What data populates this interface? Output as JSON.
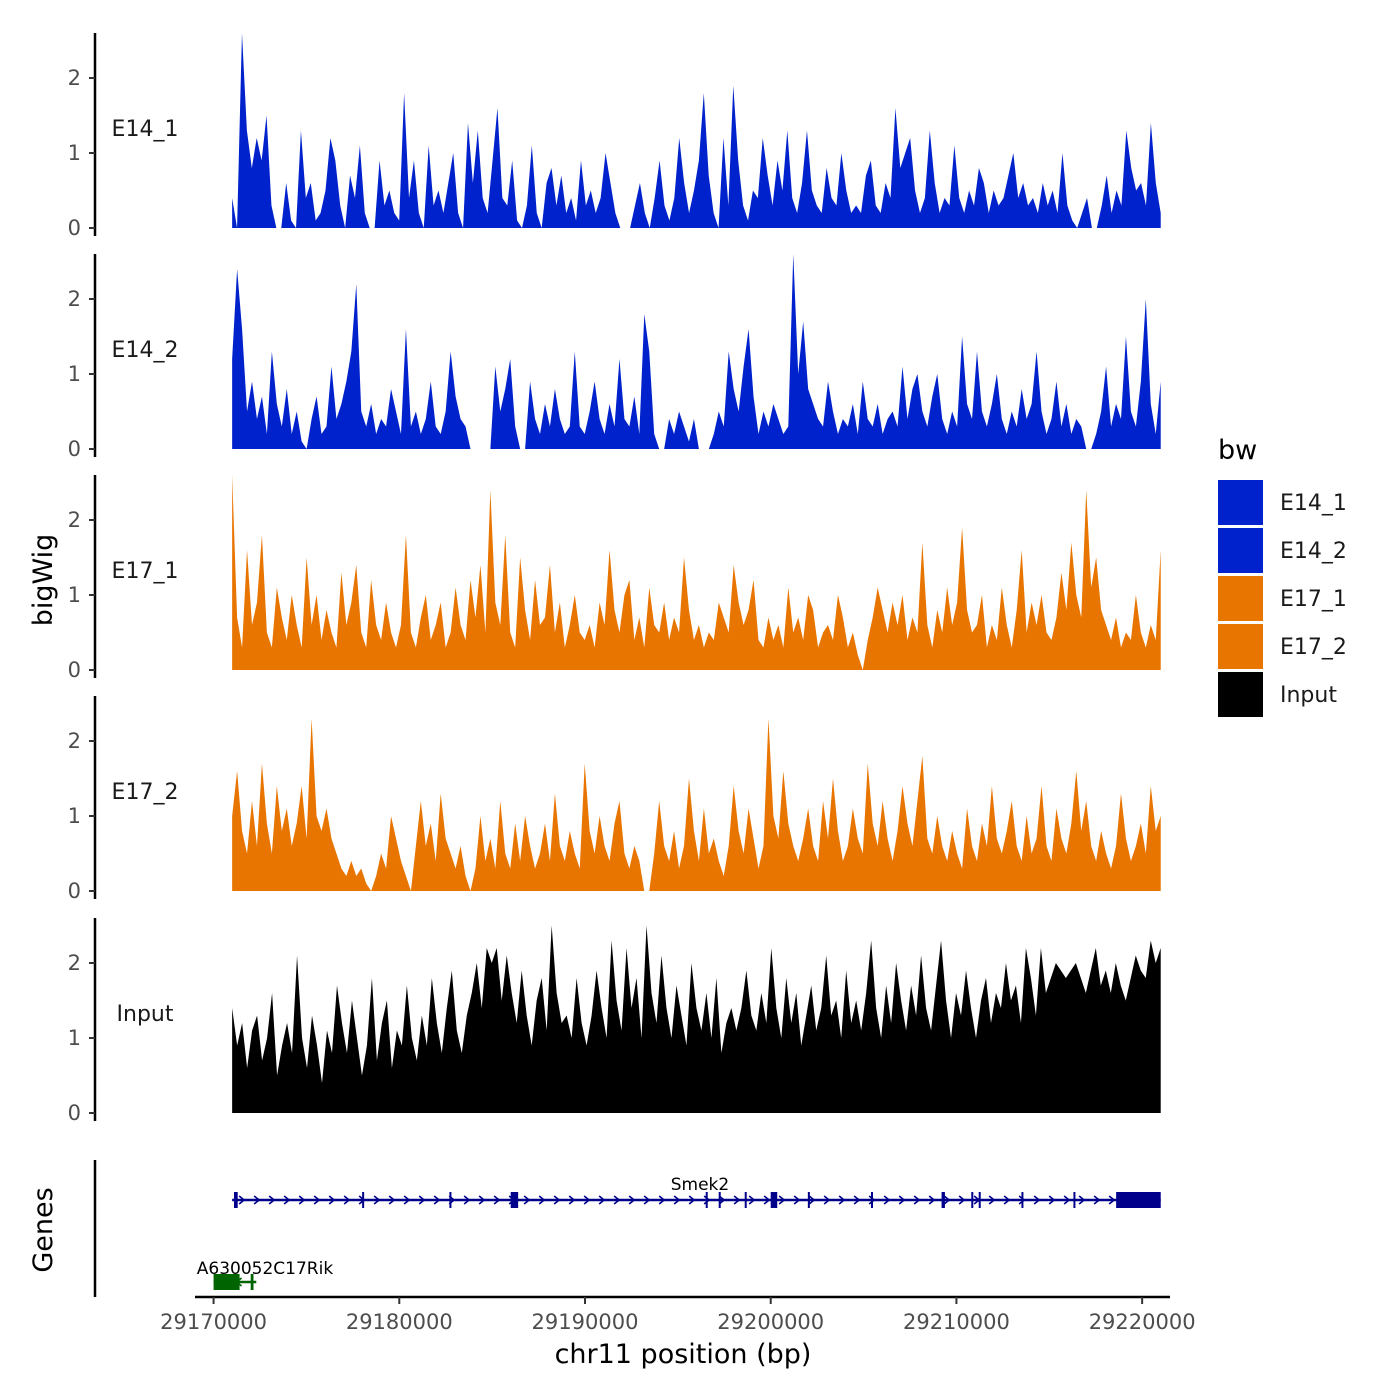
{
  "chart_data": {
    "type": "area",
    "title": "",
    "xlabel": "chr11 position (bp)",
    "ylabel_tracks": "bigWig",
    "ylabel_genes": "Genes",
    "xlim": [
      29169000,
      29221500
    ],
    "data_x_range": [
      29171000,
      29221000
    ],
    "ylim": [
      0,
      2.6
    ],
    "y_ticks": [
      "0",
      "1",
      "2"
    ],
    "x_ticks": [
      "29170000",
      "29180000",
      "29190000",
      "29200000",
      "29210000",
      "29220000"
    ],
    "legend": {
      "title": "bw",
      "position": "right",
      "entries": [
        {
          "label": "E14_1",
          "color": "#0022CC"
        },
        {
          "label": "E14_2",
          "color": "#0022CC"
        },
        {
          "label": "E17_1",
          "color": "#E87500"
        },
        {
          "label": "E17_2",
          "color": "#E87500"
        },
        {
          "label": "Input",
          "color": "#000000"
        }
      ]
    },
    "series": [
      {
        "name": "E14_1",
        "color": "#0022CC",
        "values": [
          0.4,
          0,
          2.6,
          1.3,
          0.8,
          1.2,
          0.9,
          1.5,
          0.3,
          0,
          0,
          0.6,
          0.1,
          0,
          1.3,
          0.4,
          0.6,
          0.1,
          0.2,
          0.5,
          1.2,
          0.9,
          0.3,
          0,
          0.7,
          0.4,
          1.1,
          0.2,
          0,
          0,
          0.9,
          0.3,
          0.5,
          0.2,
          0.1,
          1.8,
          0.4,
          0.9,
          0.2,
          0,
          1.1,
          0.3,
          0.5,
          0.2,
          0.6,
          1.0,
          0.2,
          0,
          1.4,
          0.6,
          1.3,
          0.4,
          0.2,
          0.9,
          1.6,
          0.4,
          0.3,
          0.9,
          0.1,
          0,
          0.3,
          1.1,
          0.2,
          0,
          0.6,
          0.8,
          0.3,
          0.7,
          0.2,
          0.4,
          0.1,
          0.9,
          0.3,
          0.5,
          0.2,
          0.4,
          1.0,
          0.6,
          0.2,
          0,
          0,
          0,
          0.3,
          0.6,
          0.2,
          0,
          0.4,
          0.9,
          0.3,
          0.1,
          0.4,
          1.2,
          0.6,
          0.2,
          0.5,
          0.9,
          1.8,
          0.7,
          0.2,
          0,
          1.2,
          0.3,
          1.9,
          0.9,
          0.3,
          0.1,
          0.5,
          0.4,
          1.2,
          0.7,
          0.3,
          0.9,
          0.5,
          1.3,
          0.4,
          0.2,
          0.6,
          1.3,
          0.5,
          0.3,
          0.2,
          0.8,
          0.4,
          0.3,
          1.0,
          0.5,
          0.2,
          0.3,
          0.2,
          0.7,
          0.9,
          0.3,
          0.2,
          0.6,
          0.4,
          1.6,
          0.8,
          1.0,
          1.2,
          0.5,
          0.2,
          0.4,
          1.3,
          0.6,
          0.2,
          0.4,
          0.3,
          1.1,
          0.4,
          0.2,
          0.5,
          0.3,
          0.8,
          0.6,
          0.2,
          0.5,
          0.3,
          0.4,
          0.7,
          1.0,
          0.4,
          0.6,
          0.3,
          0.4,
          0.2,
          0.6,
          0.3,
          0.5,
          0.2,
          1.0,
          0.3,
          0.1,
          0,
          0.2,
          0.4,
          0,
          0,
          0.3,
          0.7,
          0.2,
          0.5,
          0.3,
          1.3,
          0.8,
          0.5,
          0.6,
          0.3,
          1.4,
          0.6,
          0.2
        ]
      },
      {
        "name": "E14_2",
        "color": "#0022CC",
        "values": [
          1.2,
          2.4,
          1.6,
          0.5,
          0.9,
          0.4,
          0.7,
          0.2,
          1.3,
          0.6,
          0.3,
          0.8,
          0.2,
          0.5,
          0.1,
          0,
          0.4,
          0.7,
          0.2,
          0.3,
          1.1,
          0.4,
          0.6,
          0.9,
          1.3,
          2.2,
          0.5,
          0.3,
          0.6,
          0.2,
          0.4,
          0.3,
          0.8,
          0.5,
          0.2,
          1.6,
          0.3,
          0.5,
          0.2,
          0.4,
          0.9,
          0.3,
          0.2,
          0.5,
          1.3,
          0.7,
          0.4,
          0.3,
          0,
          0,
          0,
          0,
          0,
          1.1,
          0.5,
          0.8,
          1.2,
          0.3,
          0,
          0,
          0.9,
          0.4,
          0.2,
          0.6,
          0.3,
          0.8,
          0.4,
          0.2,
          0.3,
          1.3,
          0.3,
          0.2,
          0.5,
          0.9,
          0.4,
          0.2,
          0.6,
          0.3,
          1.2,
          0.4,
          0.3,
          0.7,
          0.2,
          1.8,
          1.3,
          0.2,
          0,
          0,
          0.4,
          0.2,
          0.5,
          0.3,
          0.1,
          0.4,
          0,
          0,
          0,
          0.2,
          0.5,
          0.3,
          1.3,
          0.8,
          0.5,
          1.1,
          1.6,
          0.7,
          0.2,
          0.5,
          0.3,
          0.6,
          0.4,
          0.2,
          0.3,
          2.6,
          1.0,
          1.7,
          0.8,
          0.6,
          0.4,
          0.3,
          0.9,
          0.5,
          0.2,
          0.4,
          0.3,
          0.6,
          0.2,
          0.9,
          0.4,
          0.3,
          0.6,
          0.2,
          0.4,
          0.5,
          0.3,
          1.1,
          0.4,
          0.8,
          1.0,
          0.5,
          0.3,
          0.7,
          1.0,
          0.4,
          0.2,
          0.5,
          0.3,
          1.5,
          0.6,
          0.4,
          1.3,
          0.5,
          0.3,
          0.6,
          1.0,
          0.4,
          0.2,
          0.5,
          0.3,
          0.8,
          0.4,
          0.6,
          1.3,
          0.5,
          0.2,
          0.4,
          0.9,
          0.3,
          0.6,
          0.2,
          0.4,
          0.3,
          0,
          0,
          0.2,
          0.5,
          1.1,
          0.3,
          0.6,
          0.4,
          1.5,
          0.5,
          0.3,
          0.9,
          2.0,
          0.6,
          0.2,
          0.9
        ]
      },
      {
        "name": "E17_1",
        "color": "#E87500",
        "values": [
          2.6,
          0.7,
          0.3,
          1.6,
          0.6,
          0.9,
          1.8,
          0.5,
          0.3,
          1.1,
          0.7,
          0.4,
          1.0,
          0.6,
          0.3,
          1.5,
          0.6,
          1.0,
          0.4,
          0.8,
          0.5,
          0.3,
          1.3,
          0.6,
          0.9,
          1.4,
          0.5,
          0.3,
          1.2,
          0.6,
          0.4,
          0.9,
          0.5,
          0.3,
          0.6,
          1.8,
          0.5,
          0.3,
          0.7,
          1.0,
          0.4,
          0.6,
          0.9,
          0.3,
          0.5,
          1.1,
          0.6,
          0.4,
          1.2,
          0.7,
          1.4,
          0.5,
          2.4,
          0.9,
          0.6,
          1.8,
          0.5,
          0.3,
          1.5,
          0.8,
          0.4,
          1.2,
          0.6,
          0.7,
          1.4,
          0.5,
          0.9,
          0.3,
          0.6,
          1.0,
          0.5,
          0.4,
          0.6,
          0.3,
          0.9,
          0.6,
          1.6,
          0.8,
          0.5,
          1.0,
          1.2,
          0.4,
          0.7,
          0.3,
          1.1,
          0.6,
          0.5,
          0.9,
          0.4,
          0.7,
          0.5,
          1.5,
          0.8,
          0.4,
          0.6,
          0.3,
          0.5,
          0.4,
          0.9,
          0.7,
          0.5,
          1.4,
          0.9,
          0.6,
          0.8,
          1.2,
          0.4,
          0.3,
          0.7,
          0.4,
          0.6,
          0.3,
          1.1,
          0.5,
          0.7,
          0.4,
          1.0,
          0.8,
          0.3,
          0.5,
          0.6,
          0.4,
          1.0,
          0.7,
          0.3,
          0.5,
          0.2,
          0,
          0.4,
          0.7,
          1.1,
          0.8,
          0.5,
          0.9,
          0.6,
          1.0,
          0.4,
          0.7,
          0.5,
          1.7,
          0.6,
          0.3,
          0.8,
          0.5,
          1.1,
          0.6,
          0.9,
          1.9,
          0.8,
          0.5,
          0.6,
          1.0,
          0.3,
          0.6,
          0.4,
          1.1,
          0.6,
          0.3,
          0.8,
          1.6,
          0.5,
          0.9,
          0.6,
          1.0,
          0.5,
          0.4,
          0.7,
          1.3,
          0.8,
          1.7,
          1.0,
          0.7,
          2.4,
          1.1,
          1.5,
          0.8,
          0.6,
          0.4,
          0.7,
          0.3,
          0.5,
          0.4,
          1.0,
          0.5,
          0.3,
          0.6,
          0.4,
          1.6
        ]
      },
      {
        "name": "E17_2",
        "color": "#E87500",
        "values": [
          1.0,
          1.6,
          0.8,
          0.5,
          1.2,
          0.6,
          1.7,
          0.9,
          0.5,
          1.4,
          0.8,
          1.1,
          0.6,
          0.9,
          1.4,
          0.7,
          2.3,
          1.0,
          0.8,
          1.1,
          0.7,
          0.5,
          0.3,
          0.2,
          0.4,
          0.2,
          0.3,
          0.1,
          0,
          0.2,
          0.5,
          0.3,
          1.0,
          0.7,
          0.4,
          0.2,
          0,
          0.6,
          1.2,
          0.6,
          0.9,
          0.4,
          1.3,
          0.7,
          0.5,
          0.3,
          0.6,
          0.2,
          0,
          0.3,
          1.0,
          0.4,
          0.7,
          0.3,
          1.2,
          0.5,
          0.3,
          0.9,
          0.4,
          1.0,
          0.6,
          0.3,
          0.5,
          0.9,
          0.4,
          1.3,
          0.6,
          0.4,
          0.8,
          0.5,
          0.3,
          1.7,
          0.8,
          0.5,
          1.0,
          0.6,
          0.4,
          0.9,
          1.2,
          0.5,
          0.3,
          0.6,
          0.4,
          0,
          0,
          0.5,
          1.2,
          0.6,
          0.4,
          0.8,
          0.3,
          0.6,
          1.5,
          0.8,
          0.4,
          1.1,
          0.5,
          0.7,
          0.4,
          0.2,
          0.6,
          1.4,
          0.8,
          0.5,
          1.1,
          0.7,
          0.3,
          0.6,
          2.3,
          1.0,
          0.7,
          1.6,
          0.9,
          0.6,
          0.4,
          0.7,
          1.1,
          0.6,
          0.4,
          1.2,
          0.7,
          1.5,
          0.8,
          0.4,
          0.6,
          1.1,
          0.7,
          0.5,
          1.7,
          0.9,
          0.6,
          1.2,
          0.7,
          0.4,
          0.8,
          1.4,
          0.9,
          0.6,
          1.2,
          1.8,
          0.7,
          0.5,
          1.0,
          0.6,
          0.4,
          0.8,
          0.5,
          0.3,
          1.1,
          0.6,
          0.4,
          0.9,
          0.6,
          1.4,
          0.7,
          0.5,
          0.8,
          1.2,
          0.6,
          0.4,
          1.0,
          0.5,
          0.7,
          1.4,
          0.6,
          0.4,
          1.1,
          0.7,
          0.5,
          0.9,
          1.6,
          0.8,
          1.2,
          0.6,
          0.4,
          0.8,
          0.5,
          0.3,
          0.6,
          1.3,
          0.7,
          0.4,
          0.6,
          0.9,
          0.5,
          1.4,
          0.8,
          1.0
        ]
      },
      {
        "name": "Input",
        "color": "#000000",
        "values": [
          1.4,
          0.9,
          1.2,
          0.6,
          1.1,
          1.3,
          0.7,
          1.0,
          1.6,
          0.5,
          0.9,
          1.2,
          0.8,
          2.1,
          1.0,
          0.6,
          1.3,
          0.9,
          0.4,
          1.1,
          0.8,
          1.7,
          1.2,
          0.8,
          1.5,
          1.0,
          0.5,
          0.9,
          1.8,
          0.7,
          1.2,
          1.5,
          0.6,
          1.1,
          0.9,
          1.7,
          1.0,
          0.7,
          1.3,
          0.9,
          1.8,
          1.2,
          0.8,
          1.4,
          1.9,
          1.1,
          0.8,
          1.3,
          1.6,
          2.0,
          1.4,
          2.2,
          2.0,
          2.2,
          1.5,
          2.1,
          1.6,
          1.2,
          1.9,
          1.3,
          0.9,
          1.5,
          1.8,
          1.1,
          2.5,
          1.6,
          1.2,
          1.3,
          1.0,
          1.8,
          1.2,
          0.9,
          1.3,
          1.9,
          1.4,
          1.0,
          2.3,
          1.5,
          1.1,
          2.2,
          1.4,
          1.8,
          1.0,
          2.5,
          1.6,
          1.2,
          2.1,
          1.4,
          1.0,
          1.7,
          1.3,
          0.9,
          2.0,
          1.4,
          1.1,
          1.6,
          1.0,
          1.8,
          0.8,
          1.2,
          1.4,
          1.1,
          1.4,
          1.9,
          1.3,
          1.1,
          1.6,
          1.2,
          2.2,
          1.4,
          1.0,
          1.8,
          1.2,
          1.6,
          0.9,
          1.3,
          1.7,
          1.1,
          1.4,
          2.1,
          1.3,
          1.5,
          1.0,
          1.9,
          1.2,
          1.5,
          1.1,
          1.6,
          2.3,
          1.4,
          1.0,
          1.7,
          1.2,
          2.0,
          1.5,
          1.1,
          1.7,
          1.3,
          2.1,
          1.4,
          1.1,
          1.7,
          2.3,
          1.5,
          1.0,
          1.6,
          1.3,
          1.9,
          1.4,
          1.0,
          1.5,
          1.8,
          1.2,
          1.6,
          1.4,
          2.0,
          1.5,
          1.7,
          1.2,
          2.2,
          1.8,
          1.3,
          2.2,
          1.6,
          1.8,
          2.0,
          1.9,
          1.8,
          1.9,
          2.0,
          1.8,
          1.6,
          1.9,
          2.2,
          1.7,
          1.9,
          1.6,
          2.0,
          1.7,
          1.5,
          1.8,
          2.1,
          1.9,
          1.8,
          2.3,
          2.0,
          2.2
        ]
      }
    ],
    "genes": [
      {
        "name": "Smek2",
        "color": "#00008B",
        "strand": "+",
        "start": 29171000,
        "end": 29221000,
        "exons": [
          [
            29171100,
            29171300
          ],
          [
            29178000,
            29178050
          ],
          [
            29182700,
            29182760
          ],
          [
            29186000,
            29186400
          ],
          [
            29196500,
            29196560
          ],
          [
            29197200,
            29197280
          ],
          [
            29198600,
            29198700
          ],
          [
            29200000,
            29200350
          ],
          [
            29202000,
            29202050
          ],
          [
            29205400,
            29205480
          ],
          [
            29209200,
            29209380
          ],
          [
            29210800,
            29210880
          ],
          [
            29211200,
            29211280
          ],
          [
            29213500,
            29213580
          ],
          [
            29216300,
            29216380
          ],
          [
            29218600,
            29221000
          ]
        ]
      },
      {
        "name": "A630052C17Rik",
        "color": "#006400",
        "strand": "-",
        "start": 29170000,
        "end": 29172300,
        "exons": [
          [
            29170000,
            29171400
          ],
          [
            29172000,
            29172150
          ]
        ]
      }
    ]
  }
}
